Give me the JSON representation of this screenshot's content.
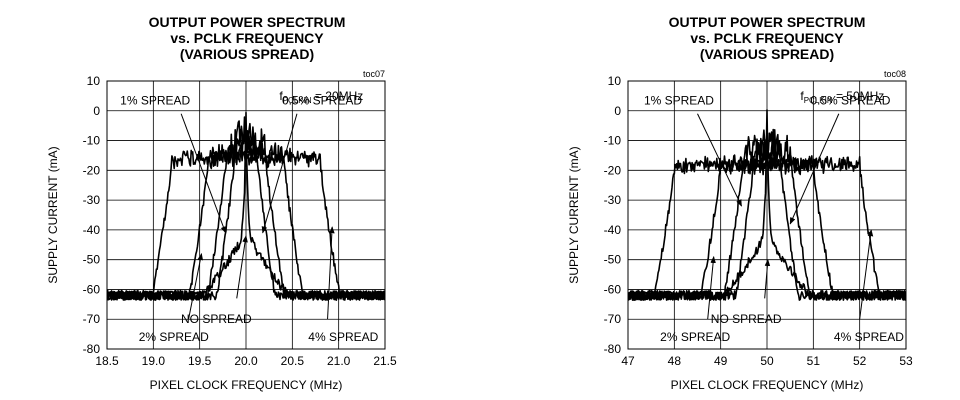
{
  "chart_data": [
    {
      "type": "line",
      "title_lines": [
        "OUTPUT POWER SPECTRUM",
        "vs. PCLK FREQUENCY",
        "(VARIOUS SPREAD)"
      ],
      "toc": "toc07",
      "xlabel": "PIXEL CLOCK FREQUENCY (MHz)",
      "ylabel": "SUPPLY CURRENT (mA)",
      "xlim": [
        18.5,
        21.5
      ],
      "ylim": [
        -80,
        10
      ],
      "xticks": [
        "18.5",
        "19.0",
        "19.5",
        "20.0",
        "20.5",
        "21.0",
        "21.5"
      ],
      "yticks": [
        "10",
        "0",
        "-10",
        "-20",
        "-30",
        "-40",
        "-50",
        "-60",
        "-70",
        "-80"
      ],
      "grid": true,
      "condition": {
        "prefix": "f",
        "sub": "PCLKIN",
        "suffix": " = 20MHz"
      },
      "annotations": [
        {
          "text": "1% SPREAD",
          "x": 19.02,
          "y": 3.5
        },
        {
          "text": "0.5% SPREAD",
          "x": 20.82,
          "y": 3.5
        },
        {
          "text": "NO SPREAD",
          "x": 19.68,
          "y": -70
        },
        {
          "text": "2% SPREAD",
          "x": 19.22,
          "y": -76
        },
        {
          "text": "4% SPREAD",
          "x": 21.05,
          "y": -76
        }
      ],
      "arrows": [
        {
          "from": [
            19.3,
            -1
          ],
          "to": [
            19.78,
            -41
          ]
        },
        {
          "from": [
            20.55,
            -1
          ],
          "to": [
            20.18,
            -41
          ]
        },
        {
          "from": [
            19.9,
            -63
          ],
          "to": [
            20.0,
            -42
          ]
        },
        {
          "from": [
            19.38,
            -70
          ],
          "to": [
            19.52,
            -48
          ]
        },
        {
          "from": [
            20.88,
            -70
          ],
          "to": [
            20.93,
            -39
          ]
        }
      ],
      "series": [
        {
          "center": 20.0,
          "spread": 0.0,
          "peak": 0,
          "floor": -62
        },
        {
          "center": 20.0,
          "spread": 0.1,
          "peak": -8,
          "floor": -62
        },
        {
          "center": 20.0,
          "spread": 0.2,
          "peak": -12,
          "floor": -62
        },
        {
          "center": 20.0,
          "spread": 0.4,
          "peak": -14,
          "floor": -62
        },
        {
          "center": 20.0,
          "spread": 0.8,
          "peak": -16,
          "floor": -62
        }
      ]
    },
    {
      "type": "line",
      "title_lines": [
        "OUTPUT POWER SPECTRUM",
        "vs. PCLK FREQUENCY",
        "(VARIOUS SPREAD)"
      ],
      "toc": "toc08",
      "xlabel": "PIXEL CLOCK FREQUENCY (MHz)",
      "ylabel": "SUPPLY CURRENT (mA)",
      "xlim": [
        47,
        53
      ],
      "ylim": [
        -80,
        10
      ],
      "xticks": [
        "47",
        "48",
        "49",
        "50",
        "51",
        "52",
        "53"
      ],
      "yticks": [
        "10",
        "0",
        "-10",
        "-20",
        "-30",
        "-40",
        "-50",
        "-60",
        "-70",
        "-80"
      ],
      "grid": true,
      "condition": {
        "prefix": "f",
        "sub": "PCLKIN",
        "suffix": " = 50MHz"
      },
      "annotations": [
        {
          "text": "1% SPREAD",
          "x": 48.1,
          "y": 3.5
        },
        {
          "text": "0.5% SPREAD",
          "x": 51.8,
          "y": 3.5
        },
        {
          "text": "NO SPREAD",
          "x": 49.55,
          "y": -70
        },
        {
          "text": "2% SPREAD",
          "x": 48.45,
          "y": -76
        },
        {
          "text": "4% SPREAD",
          "x": 52.2,
          "y": -76
        }
      ],
      "arrows": [
        {
          "from": [
            48.5,
            -1
          ],
          "to": [
            49.45,
            -32
          ]
        },
        {
          "from": [
            51.55,
            -1
          ],
          "to": [
            50.5,
            -38
          ]
        },
        {
          "from": [
            49.95,
            -63
          ],
          "to": [
            50.02,
            -50
          ]
        },
        {
          "from": [
            48.72,
            -70
          ],
          "to": [
            48.85,
            -49
          ]
        },
        {
          "from": [
            52.0,
            -70
          ],
          "to": [
            52.25,
            -40
          ]
        }
      ],
      "series": [
        {
          "center": 50.0,
          "spread": 0.0,
          "peak": 0,
          "floor": -62
        },
        {
          "center": 50.0,
          "spread": 0.25,
          "peak": -11,
          "floor": -62
        },
        {
          "center": 50.0,
          "spread": 0.5,
          "peak": -14,
          "floor": -62
        },
        {
          "center": 50.0,
          "spread": 1.0,
          "peak": -18,
          "floor": -62
        },
        {
          "center": 50.0,
          "spread": 2.0,
          "peak": -18,
          "floor": -62
        }
      ]
    }
  ]
}
